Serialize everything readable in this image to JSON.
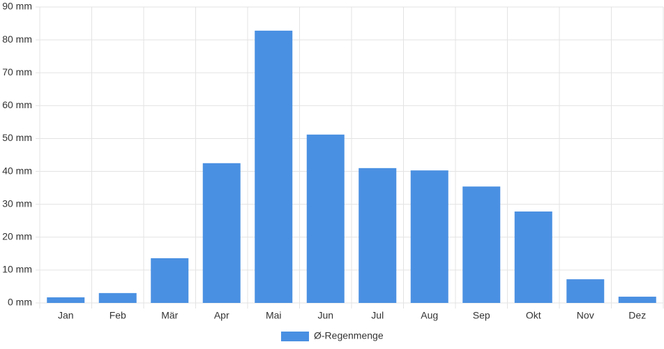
{
  "chart_data": {
    "type": "bar",
    "categories": [
      "Jan",
      "Feb",
      "Mär",
      "Apr",
      "Mai",
      "Jun",
      "Jul",
      "Aug",
      "Sep",
      "Okt",
      "Nov",
      "Dez"
    ],
    "series": [
      {
        "name": "Ø-Regenmenge",
        "color": "#4a90e2",
        "values": [
          1.7,
          3.0,
          13.6,
          42.5,
          82.8,
          51.2,
          41.0,
          40.3,
          35.4,
          27.8,
          7.2,
          1.9
        ]
      }
    ],
    "ylim": [
      0,
      90
    ],
    "yticks": [
      {
        "value": 0,
        "label": "0 mm"
      },
      {
        "value": 10,
        "label": "10 mm"
      },
      {
        "value": 20,
        "label": "20 mm"
      },
      {
        "value": 30,
        "label": "30 mm"
      },
      {
        "value": 40,
        "label": "40 mm"
      },
      {
        "value": 50,
        "label": "50 mm"
      },
      {
        "value": 60,
        "label": "60 mm"
      },
      {
        "value": 70,
        "label": "70 mm"
      },
      {
        "value": 80,
        "label": "80 mm"
      },
      {
        "value": 90,
        "label": "90 mm"
      }
    ],
    "grid": true,
    "legend": "bottom"
  }
}
